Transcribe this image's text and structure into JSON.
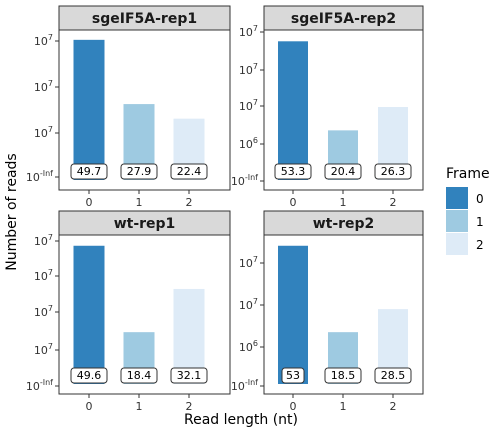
{
  "chart_data": {
    "type": "bar",
    "xlabel": "Read length (nt)",
    "ylabel": "Number of reads",
    "categories": [
      "0",
      "1",
      "2"
    ],
    "legend": {
      "title": "Frame",
      "placement": "right",
      "entries": [
        {
          "label": "0",
          "color": "#3182bd"
        },
        {
          "label": "1",
          "color": "#9ecae1"
        },
        {
          "label": "2",
          "color": "#deebf7"
        }
      ]
    },
    "panels": [
      {
        "title": "sgeIF5A-rep1",
        "y_ticks": [
          "10^7",
          "10^7",
          "10^7",
          "10^-Inf"
        ],
        "bar_fraction": [
          0.96,
          0.52,
          0.42
        ],
        "labels": [
          "49.7",
          "27.9",
          "22.4"
        ]
      },
      {
        "title": "sgeIF5A-rep2",
        "y_ticks": [
          "10^7",
          "10^7",
          "10^6",
          "10^-Inf"
        ],
        "bar_fraction": [
          0.95,
          0.34,
          0.5
        ],
        "labels": [
          "53.3",
          "20.4",
          "26.3"
        ]
      },
      {
        "title": "wt-rep1",
        "y_ticks": [
          "10^7",
          "10^7",
          "10^7",
          "10^-Inf"
        ],
        "bar_fraction": [
          0.96,
          0.36,
          0.66
        ],
        "labels": [
          "49.6",
          "18.4",
          "32.1"
        ]
      },
      {
        "title": "wt-rep2",
        "y_ticks": [
          "10^7",
          "10^7",
          "10^6",
          "10^-Inf"
        ],
        "bar_fraction": [
          0.96,
          0.36,
          0.52
        ],
        "labels": [
          "53",
          "18.5",
          "28.5"
        ]
      }
    ]
  }
}
